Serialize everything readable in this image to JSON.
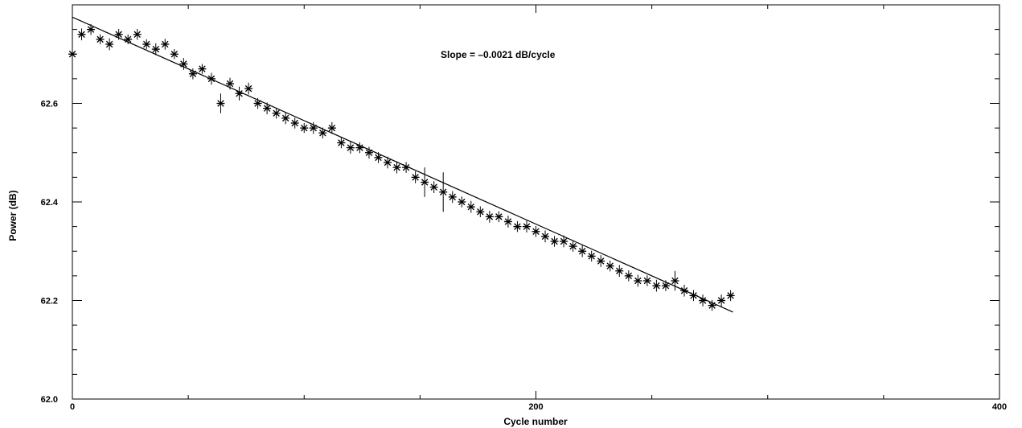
{
  "chart_data": {
    "type": "scatter",
    "title": "",
    "xlabel": "Cycle number",
    "ylabel": "Power    (dB)",
    "xlim": [
      0,
      400
    ],
    "ylim": [
      62.0,
      62.8
    ],
    "x_ticks": [
      0,
      200,
      400
    ],
    "x_tick_labels": [
      "0",
      "200",
      "400"
    ],
    "y_ticks": [
      62.0,
      62.2,
      62.4,
      62.6
    ],
    "y_tick_labels": [
      "62.0",
      "62.2",
      "62.4",
      "62.6"
    ],
    "grid": false,
    "annotation": "Slope = –0.0021 dB/cycle",
    "fit_line": {
      "slope": -0.0021,
      "x_range": [
        0,
        285
      ],
      "y_start": 62.775
    },
    "points": {
      "x": [
        0,
        4,
        8,
        12,
        16,
        20,
        24,
        28,
        32,
        36,
        40,
        44,
        48,
        52,
        56,
        60,
        64,
        68,
        72,
        76,
        80,
        84,
        88,
        92,
        96,
        100,
        104,
        108,
        112,
        116,
        120,
        124,
        128,
        132,
        136,
        140,
        144,
        148,
        152,
        156,
        160,
        164,
        168,
        172,
        176,
        180,
        184,
        188,
        192,
        196,
        200,
        204,
        208,
        212,
        216,
        220,
        224,
        228,
        232,
        236,
        240,
        244,
        248,
        252,
        256,
        260,
        264,
        268,
        272,
        276,
        280,
        284
      ],
      "y": [
        62.7,
        62.74,
        62.75,
        62.73,
        62.72,
        62.74,
        62.73,
        62.74,
        62.72,
        62.71,
        62.72,
        62.7,
        62.68,
        62.66,
        62.67,
        62.65,
        62.6,
        62.64,
        62.62,
        62.63,
        62.6,
        62.59,
        62.58,
        62.57,
        62.56,
        62.55,
        62.55,
        62.54,
        62.55,
        62.52,
        62.51,
        62.51,
        62.5,
        62.49,
        62.48,
        62.47,
        62.47,
        62.45,
        62.44,
        62.43,
        62.42,
        62.41,
        62.4,
        62.39,
        62.38,
        62.37,
        62.37,
        62.36,
        62.35,
        62.35,
        62.34,
        62.33,
        62.32,
        62.32,
        62.31,
        62.3,
        62.29,
        62.28,
        62.27,
        62.26,
        62.25,
        62.24,
        62.24,
        62.23,
        62.23,
        62.24,
        62.22,
        62.21,
        62.2,
        62.19,
        62.2,
        62.21
      ],
      "err": [
        0.01,
        0.012,
        0.011,
        0.01,
        0.012,
        0.011,
        0.01,
        0.011,
        0.01,
        0.012,
        0.011,
        0.01,
        0.012,
        0.011,
        0.01,
        0.012,
        0.02,
        0.012,
        0.014,
        0.012,
        0.011,
        0.012,
        0.011,
        0.012,
        0.011,
        0.01,
        0.012,
        0.011,
        0.012,
        0.011,
        0.012,
        0.011,
        0.012,
        0.011,
        0.012,
        0.012,
        0.011,
        0.012,
        0.03,
        0.012,
        0.04,
        0.012,
        0.011,
        0.012,
        0.011,
        0.012,
        0.011,
        0.012,
        0.011,
        0.012,
        0.011,
        0.012,
        0.011,
        0.012,
        0.011,
        0.012,
        0.011,
        0.012,
        0.011,
        0.012,
        0.011,
        0.012,
        0.011,
        0.012,
        0.011,
        0.02,
        0.012,
        0.011,
        0.012,
        0.011,
        0.012,
        0.011
      ]
    }
  }
}
